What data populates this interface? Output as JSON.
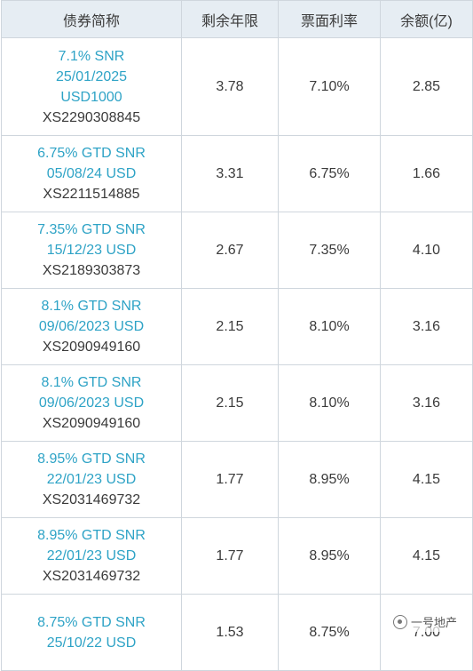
{
  "table": {
    "headers": [
      "债券简称",
      "剩余年限",
      "票面利率",
      "余额(亿)"
    ],
    "rows": [
      {
        "name": [
          "7.1% SNR",
          "25/01/2025",
          "USD1000"
        ],
        "code": "XS2290308845",
        "years": "3.78",
        "coupon": "7.10%",
        "balance": "2.85"
      },
      {
        "name": [
          "6.75% GTD SNR",
          "05/08/24 USD"
        ],
        "code": "XS2211514885",
        "years": "3.31",
        "coupon": "6.75%",
        "balance": "1.66"
      },
      {
        "name": [
          "7.35% GTD SNR",
          "15/12/23 USD"
        ],
        "code": "XS2189303873",
        "years": "2.67",
        "coupon": "7.35%",
        "balance": "4.10"
      },
      {
        "name": [
          "8.1% GTD SNR",
          "09/06/2023 USD"
        ],
        "code": "XS2090949160",
        "years": "2.15",
        "coupon": "8.10%",
        "balance": "3.16"
      },
      {
        "name": [
          "8.1% GTD SNR",
          "09/06/2023 USD"
        ],
        "code": "XS2090949160",
        "years": "2.15",
        "coupon": "8.10%",
        "balance": "3.16"
      },
      {
        "name": [
          "8.95% GTD SNR",
          "22/01/23 USD"
        ],
        "code": "XS2031469732",
        "years": "1.77",
        "coupon": "8.95%",
        "balance": "4.15"
      },
      {
        "name": [
          "8.95% GTD SNR",
          "22/01/23 USD"
        ],
        "code": "XS2031469732",
        "years": "1.77",
        "coupon": "8.95%",
        "balance": "4.15"
      },
      {
        "name": [
          "8.75% GTD SNR",
          "25/10/22 USD"
        ],
        "code": "",
        "years": "1.53",
        "coupon": "8.75%",
        "balance": "7.00"
      }
    ]
  },
  "watermark": {
    "text": "一号地产",
    "icon": "wechat-icon"
  },
  "colors": {
    "link": "#2ea3c6",
    "header_bg": "#e6edf3",
    "border": "#cfd6dd",
    "text": "#3a3a3a"
  }
}
